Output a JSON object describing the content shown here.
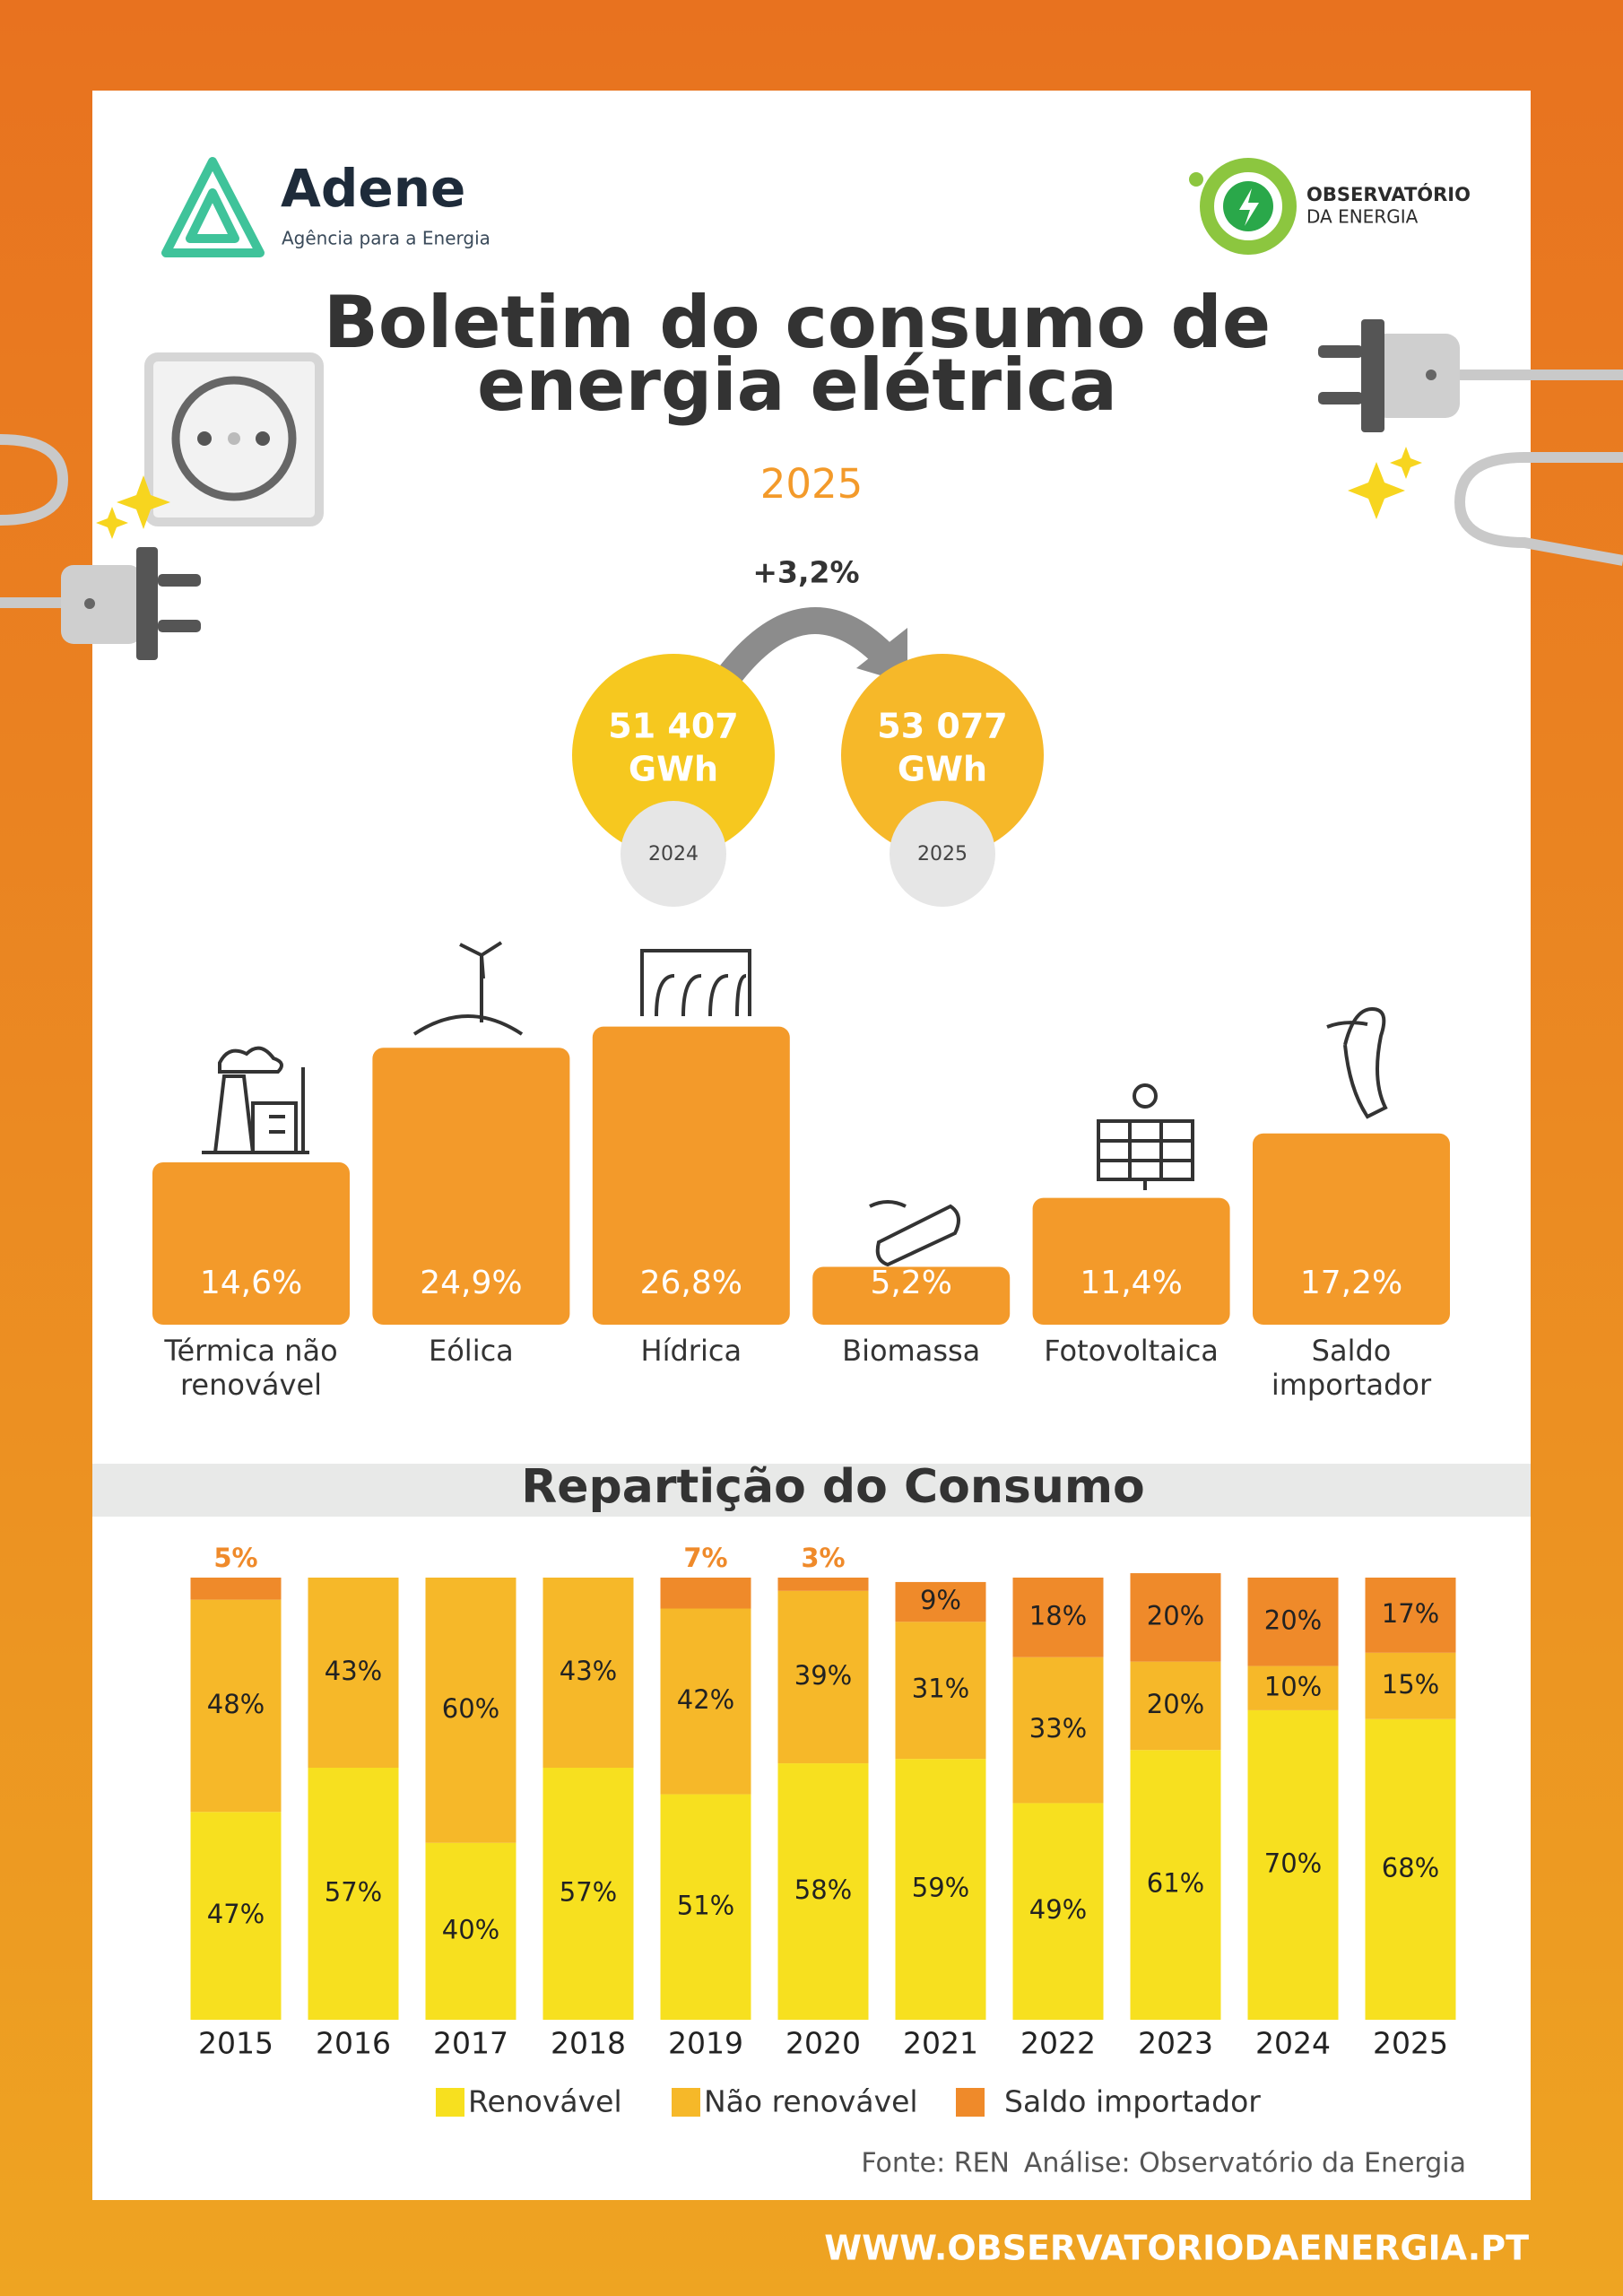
{
  "header": {
    "logo_left_name": "Adene",
    "logo_left_tagline": "Agência para a Energia",
    "logo_right_line1": "OBSERVATÓRIO",
    "logo_right_line2": "DA ENERGIA",
    "title_line1": "Boletim do consumo de",
    "title_line2": "energia elétrica",
    "year": "2025"
  },
  "comparison": {
    "change": "+3,2%",
    "items": [
      {
        "value": "51 407",
        "unit": "GWh",
        "year": "2024"
      },
      {
        "value": "53 077",
        "unit": "GWh",
        "year": "2025"
      }
    ]
  },
  "chart_data": [
    {
      "type": "bar",
      "categories": [
        "Térmica não renovável",
        "Eólica",
        "Hídrica",
        "Biomassa",
        "Fotovoltaica",
        "Saldo importador"
      ],
      "values": [
        14.6,
        24.9,
        26.8,
        5.2,
        11.4,
        17.2
      ],
      "value_labels": [
        "14,6%",
        "24,9%",
        "26,8%",
        "5,2%",
        "11,4%",
        "17,2%"
      ],
      "color": "#f39a2a",
      "ylim": [
        0,
        30
      ]
    },
    {
      "type": "stacked-bar",
      "title": "Repartição do Consumo",
      "categories": [
        "2015",
        "2016",
        "2017",
        "2018",
        "2019",
        "2020",
        "2021",
        "2022",
        "2023",
        "2024",
        "2025"
      ],
      "ylim": [
        0,
        100
      ],
      "series": [
        {
          "name": "Renovável",
          "color": "#f7e01f",
          "values": [
            47,
            57,
            40,
            57,
            51,
            58,
            59,
            49,
            61,
            70,
            68
          ],
          "value_labels": [
            "47%",
            "57%",
            "40%",
            "57%",
            "51%",
            "58%",
            "59%",
            "49%",
            "61%",
            "70%",
            "68%"
          ]
        },
        {
          "name": "Não renovável",
          "color": "#f6b829",
          "values": [
            48,
            43,
            60,
            43,
            42,
            39,
            31,
            33,
            20,
            10,
            15
          ],
          "value_labels": [
            "48%",
            "43%",
            "60%",
            "43%",
            "42%",
            "39%",
            "31%",
            "33%",
            "20%",
            "10%",
            "15%"
          ]
        },
        {
          "name": "Saldo importador",
          "color": "#ef8a2a",
          "values": [
            5,
            null,
            null,
            null,
            7,
            3,
            9,
            18,
            20,
            20,
            17
          ],
          "value_labels": [
            "5%",
            null,
            null,
            null,
            "7%",
            "3%",
            "9%",
            "18%",
            "20%",
            "20%",
            "17%"
          ]
        }
      ]
    }
  ],
  "footer": {
    "source": "Fonte: REN",
    "analysis": "Análise: Observatório da Energia",
    "url": "WWW.OBSERVATORIODAENERGIA.PT"
  }
}
